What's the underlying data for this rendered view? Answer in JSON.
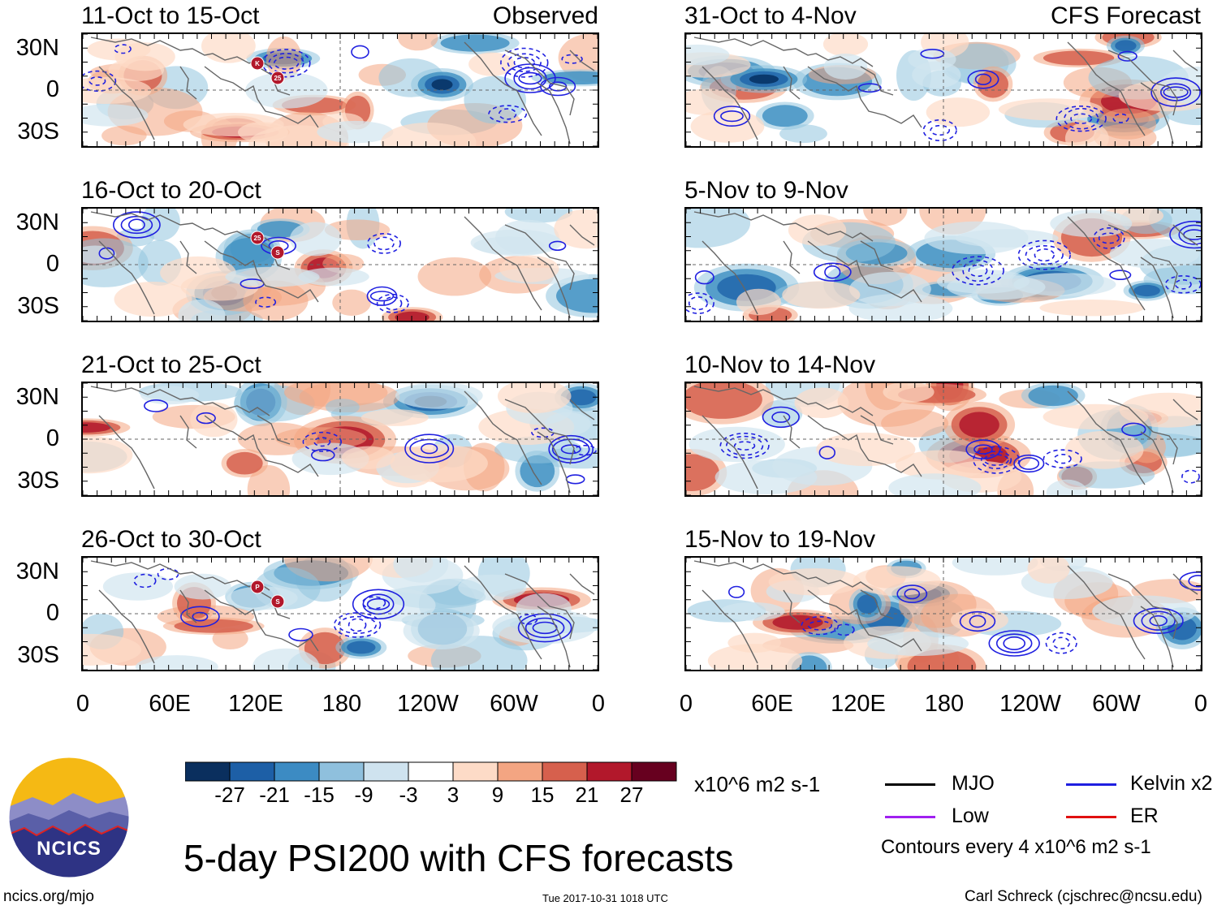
{
  "observed_label": "Observed",
  "forecast_label": "CFS Forecast",
  "panels_left": [
    {
      "date": "11-Oct to 15-Oct",
      "tag": "Observed",
      "storms": [
        "K",
        "25"
      ]
    },
    {
      "date": "16-Oct to 20-Oct",
      "tag": "",
      "storms": [
        "25",
        "S"
      ]
    },
    {
      "date": "21-Oct to 25-Oct",
      "tag": "",
      "storms": []
    },
    {
      "date": "26-Oct to 30-Oct",
      "tag": "",
      "storms": [
        "P",
        "S"
      ]
    }
  ],
  "panels_right": [
    {
      "date": "31-Oct to 4-Nov",
      "tag": "CFS Forecast"
    },
    {
      "date": "5-Nov to 9-Nov",
      "tag": ""
    },
    {
      "date": "10-Nov to 14-Nov",
      "tag": ""
    },
    {
      "date": "15-Nov to 19-Nov",
      "tag": ""
    }
  ],
  "lat_labels": [
    "30N",
    "0",
    "30S"
  ],
  "lon_labels": [
    "0",
    "60E",
    "120E",
    "180",
    "120W",
    "60W",
    "0"
  ],
  "colorbar": {
    "colors": [
      "#0a2f5e",
      "#1d5fa6",
      "#3c8bc3",
      "#8fc0dd",
      "#cfe3ef",
      "#ffffff",
      "#fddbc7",
      "#f3a582",
      "#d6604d",
      "#b2182b",
      "#67001f"
    ],
    "labels": [
      "-27",
      "-21",
      "-15",
      "-9",
      "-3",
      "3",
      "9",
      "15",
      "21",
      "27"
    ],
    "units": "x10^6 m2 s-1"
  },
  "legend": {
    "items": [
      {
        "label": "MJO",
        "color": "#000000"
      },
      {
        "label": "Kelvin x2",
        "color": "#1f1fe0"
      },
      {
        "label": "Low",
        "color": "#a020f0"
      },
      {
        "label": "ER",
        "color": "#e01010"
      }
    ],
    "contours_note": "Contours every 4 x10^6 m2 s-1"
  },
  "logo_text": "NCICS",
  "main_title": "5-day PSI200 with CFS forecasts",
  "website": "ncics.org/mjo",
  "timestamp": "Tue 2017-10-31 1018 UTC",
  "author": "Carl Schreck (cjschrec@ncsu.edu)"
}
